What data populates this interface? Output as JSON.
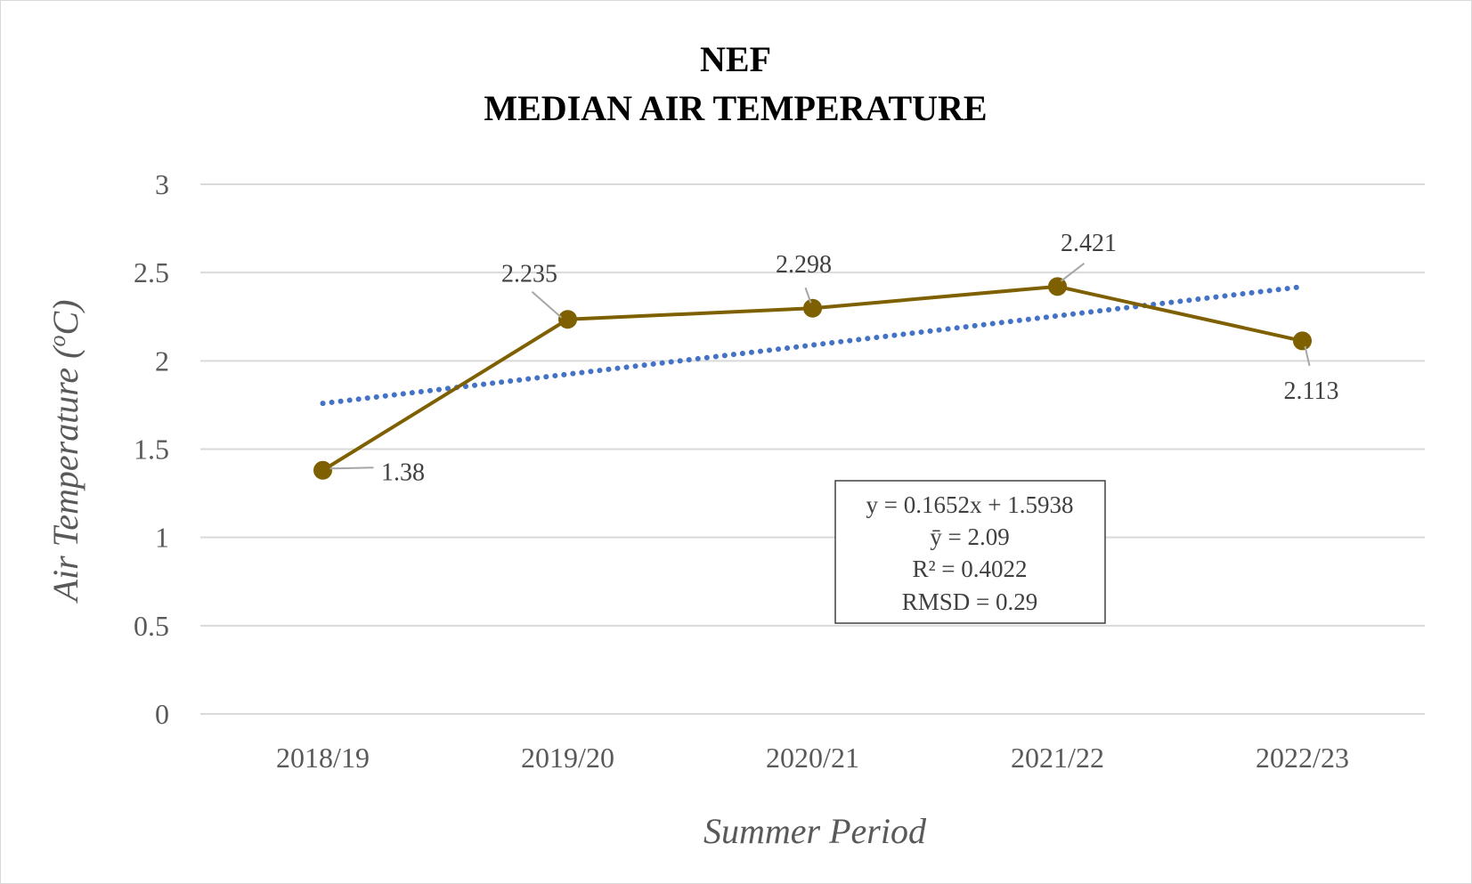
{
  "chart_data": {
    "type": "line",
    "title": [
      "NEF",
      "MEDIAN AIR TEMPERATURE"
    ],
    "xlabel": "Summer Period",
    "ylabel": "Air Temperature (°C)",
    "categories": [
      "2018/19",
      "2019/20",
      "2020/21",
      "2021/22",
      "2022/23"
    ],
    "series": [
      {
        "values": [
          1.38,
          2.235,
          2.298,
          2.421,
          2.113
        ],
        "data_labels": [
          "1.38",
          "2.235",
          "2.298",
          "2.421",
          "2.113"
        ],
        "color": "#7f6000",
        "marker": "circle"
      }
    ],
    "trendline": {
      "type": "linear",
      "slope": 0.1652,
      "intercept": 1.5938,
      "color": "#4472c4",
      "style": "dotted"
    },
    "ylim": [
      0,
      3
    ],
    "yticks": [
      "0",
      "0.5",
      "1",
      "1.5",
      "2",
      "2.5",
      "3"
    ],
    "grid": true,
    "legend": "none",
    "stats_box": [
      "y = 0.1652x + 1.5938",
      "ȳ = 2.09",
      "R² = 0.4022",
      "RMSD = 0.29"
    ]
  }
}
